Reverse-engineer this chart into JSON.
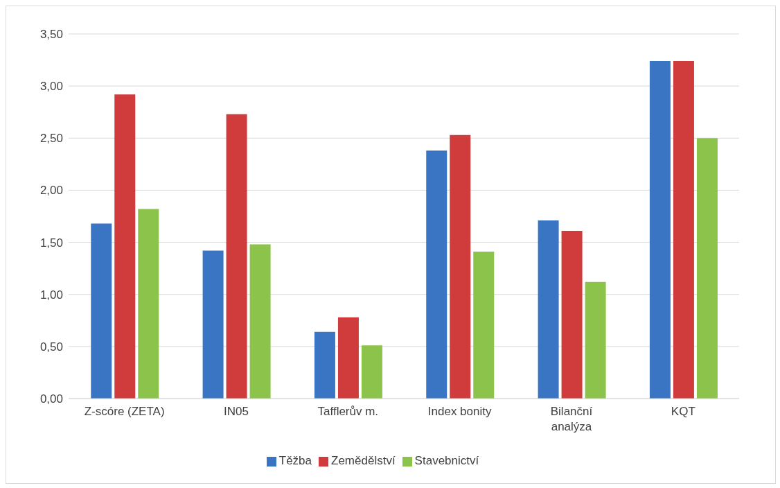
{
  "chart_data": {
    "type": "bar",
    "categories": [
      "Z-scóre (ZETA)",
      "IN05",
      "Tafflerův m.",
      "Index bonity",
      "Bilanční analýza",
      "KQT"
    ],
    "series": [
      {
        "name": "Těžba",
        "color": "#3a75c4",
        "values": [
          1.68,
          1.42,
          0.64,
          2.38,
          1.71,
          3.24
        ]
      },
      {
        "name": "Zemědělství",
        "color": "#d03b3b",
        "values": [
          2.92,
          2.73,
          0.78,
          2.53,
          1.61,
          3.24
        ]
      },
      {
        "name": "Stavebnictví",
        "color": "#8cc34a",
        "values": [
          1.82,
          1.48,
          0.51,
          1.41,
          1.12,
          2.5
        ]
      }
    ],
    "ylim": [
      0,
      3.5
    ],
    "yticks": [
      {
        "value": 0,
        "label": "0,00"
      },
      {
        "value": 0.5,
        "label": "0,50"
      },
      {
        "value": 1,
        "label": "1,00"
      },
      {
        "value": 1.5,
        "label": "1,50"
      },
      {
        "value": 2,
        "label": "2,00"
      },
      {
        "value": 2.5,
        "label": "2,50"
      },
      {
        "value": 3,
        "label": "3,00"
      },
      {
        "value": 3.5,
        "label": "3,50"
      }
    ],
    "grid": "y",
    "legend": "bottom"
  }
}
